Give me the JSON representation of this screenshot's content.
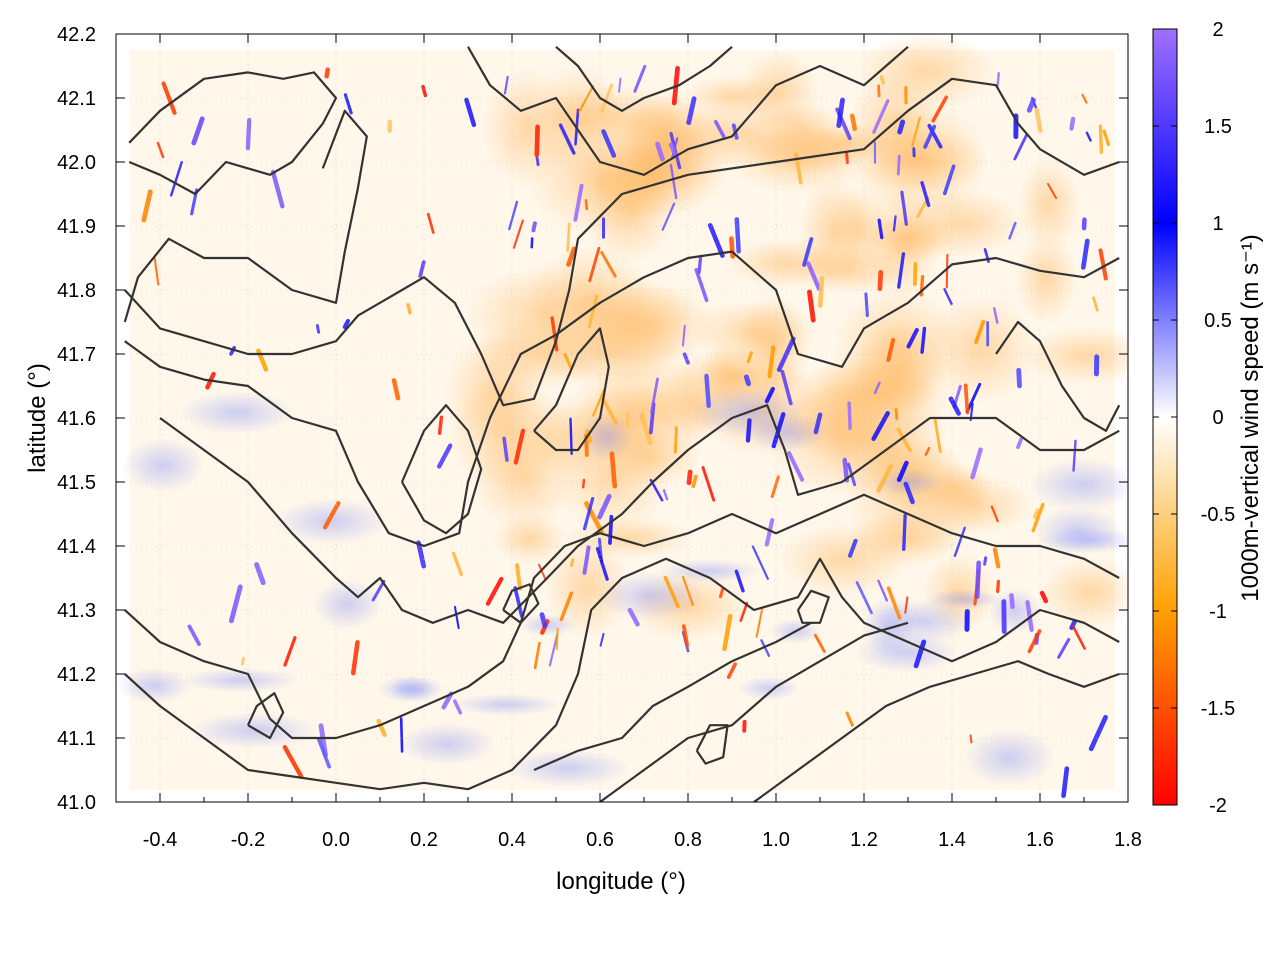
{
  "chart_data": {
    "type": "heatmap",
    "title": "",
    "xlabel": "longitude (°)",
    "ylabel": "latitude (°)",
    "colorbar_label": "1000m-vertical wind speed (m s⁻¹)",
    "xlim": [
      -0.5,
      1.8
    ],
    "ylim": [
      41.0,
      42.2
    ],
    "zlim": [
      -2,
      2
    ],
    "x_ticks": [
      -0.4,
      -0.2,
      0.0,
      0.2,
      0.4,
      0.6,
      0.8,
      1.0,
      1.2,
      1.4,
      1.6,
      1.8
    ],
    "x_tick_labels": [
      "-0.4",
      "-0.2",
      "0.0",
      "0.2",
      "0.4",
      "0.6",
      "0.8",
      "1.0",
      "1.2",
      "1.4",
      "1.6",
      "1.8"
    ],
    "y_ticks": [
      41.0,
      41.1,
      41.2,
      41.3,
      41.4,
      41.5,
      41.6,
      41.7,
      41.8,
      41.9,
      42.0,
      42.1,
      42.2
    ],
    "y_tick_labels": [
      "41.0",
      "41.1",
      "41.2",
      "41.3",
      "41.4",
      "41.5",
      "41.6",
      "41.7",
      "41.8",
      "41.9",
      "42.0",
      "42.1",
      "42.2"
    ],
    "colorbar_ticks": [
      2,
      1.5,
      1,
      0.5,
      0,
      -0.5,
      -1,
      -1.5,
      -2
    ],
    "colorbar_tick_labels": [
      "2",
      "1.5",
      "1",
      "0.5",
      "0",
      "-0.5",
      "-1",
      "-1.5",
      "-2"
    ],
    "colorbar_stops": [
      {
        "value": -2,
        "color": "#ff0000"
      },
      {
        "value": -1,
        "color": "#ffa000"
      },
      {
        "value": 0,
        "color": "#ffffff"
      },
      {
        "value": 1,
        "color": "#0000ff"
      },
      {
        "value": 2,
        "color": "#a070ff"
      }
    ],
    "contour_color": "#333333",
    "grid": true,
    "contours": [
      [
        [
          -0.47,
          42.03
        ],
        [
          -0.4,
          42.08
        ],
        [
          -0.3,
          42.13
        ],
        [
          -0.2,
          42.14
        ],
        [
          -0.12,
          42.13
        ],
        [
          -0.05,
          42.14
        ],
        [
          0.0,
          42.1
        ],
        [
          -0.03,
          42.06
        ],
        [
          -0.1,
          42.0
        ],
        [
          -0.15,
          41.98
        ],
        [
          -0.25,
          42.0
        ],
        [
          -0.32,
          41.95
        ],
        [
          -0.4,
          41.98
        ],
        [
          -0.47,
          42.0
        ]
      ],
      [
        [
          -0.03,
          41.99
        ],
        [
          0.02,
          42.08
        ],
        [
          0.07,
          42.04
        ],
        [
          0.05,
          41.96
        ],
        [
          0.02,
          41.86
        ],
        [
          0.0,
          41.78
        ],
        [
          -0.1,
          41.8
        ],
        [
          -0.2,
          41.85
        ],
        [
          -0.3,
          41.85
        ],
        [
          -0.38,
          41.88
        ],
        [
          -0.45,
          41.82
        ],
        [
          -0.48,
          41.75
        ]
      ],
      [
        [
          -0.48,
          41.8
        ],
        [
          -0.4,
          41.74
        ],
        [
          -0.3,
          41.72
        ],
        [
          -0.2,
          41.7
        ],
        [
          -0.1,
          41.7
        ],
        [
          0.0,
          41.72
        ],
        [
          0.05,
          41.76
        ],
        [
          0.1,
          41.78
        ],
        [
          0.15,
          41.8
        ],
        [
          0.2,
          41.82
        ],
        [
          0.27,
          41.78
        ],
        [
          0.33,
          41.7
        ],
        [
          0.38,
          41.62
        ],
        [
          0.45,
          41.63
        ],
        [
          0.5,
          41.72
        ],
        [
          0.53,
          41.8
        ],
        [
          0.55,
          41.88
        ],
        [
          0.65,
          41.95
        ],
        [
          0.8,
          41.98
        ],
        [
          1.0,
          42.0
        ],
        [
          1.2,
          42.02
        ],
        [
          1.3,
          42.08
        ],
        [
          1.4,
          42.13
        ],
        [
          1.5,
          42.12
        ],
        [
          1.55,
          42.06
        ],
        [
          1.6,
          42.02
        ],
        [
          1.7,
          41.98
        ],
        [
          1.78,
          42.0
        ]
      ],
      [
        [
          -0.48,
          41.72
        ],
        [
          -0.4,
          41.68
        ],
        [
          -0.3,
          41.66
        ],
        [
          -0.2,
          41.65
        ],
        [
          -0.1,
          41.6
        ],
        [
          0.0,
          41.58
        ],
        [
          0.05,
          41.5
        ],
        [
          0.12,
          41.42
        ],
        [
          0.2,
          41.4
        ],
        [
          0.28,
          41.42
        ],
        [
          0.3,
          41.5
        ],
        [
          0.35,
          41.6
        ],
        [
          0.42,
          41.7
        ],
        [
          0.5,
          41.73
        ],
        [
          0.6,
          41.78
        ],
        [
          0.7,
          41.82
        ],
        [
          0.8,
          41.85
        ],
        [
          0.9,
          41.86
        ],
        [
          1.0,
          41.8
        ],
        [
          1.05,
          41.7
        ],
        [
          1.15,
          41.68
        ],
        [
          1.2,
          41.74
        ],
        [
          1.3,
          41.78
        ],
        [
          1.4,
          41.84
        ],
        [
          1.5,
          41.85
        ],
        [
          1.6,
          41.83
        ],
        [
          1.7,
          41.82
        ],
        [
          1.78,
          41.85
        ]
      ],
      [
        [
          -0.4,
          41.6
        ],
        [
          -0.3,
          41.55
        ],
        [
          -0.2,
          41.5
        ],
        [
          -0.1,
          41.42
        ],
        [
          0.0,
          41.35
        ],
        [
          0.05,
          41.32
        ],
        [
          0.1,
          41.35
        ],
        [
          0.15,
          41.3
        ],
        [
          0.22,
          41.28
        ],
        [
          0.3,
          41.3
        ],
        [
          0.38,
          41.28
        ],
        [
          0.48,
          41.35
        ],
        [
          0.55,
          41.4
        ],
        [
          0.65,
          41.45
        ],
        [
          0.72,
          41.5
        ],
        [
          0.8,
          41.55
        ],
        [
          0.9,
          41.6
        ],
        [
          0.98,
          41.62
        ],
        [
          1.02,
          41.55
        ],
        [
          1.05,
          41.48
        ],
        [
          1.15,
          41.5
        ],
        [
          1.25,
          41.55
        ],
        [
          1.35,
          41.6
        ],
        [
          1.5,
          41.6
        ],
        [
          1.6,
          41.55
        ],
        [
          1.7,
          41.55
        ],
        [
          1.78,
          41.58
        ]
      ],
      [
        [
          0.15,
          41.5
        ],
        [
          0.2,
          41.58
        ],
        [
          0.25,
          41.62
        ],
        [
          0.3,
          41.58
        ],
        [
          0.33,
          41.52
        ],
        [
          0.3,
          41.45
        ],
        [
          0.25,
          41.42
        ],
        [
          0.2,
          41.44
        ],
        [
          0.15,
          41.5
        ]
      ],
      [
        [
          0.45,
          41.58
        ],
        [
          0.5,
          41.62
        ],
        [
          0.55,
          41.7
        ],
        [
          0.6,
          41.74
        ],
        [
          0.62,
          41.68
        ],
        [
          0.6,
          41.6
        ],
        [
          0.55,
          41.55
        ],
        [
          0.5,
          41.55
        ],
        [
          0.45,
          41.58
        ]
      ],
      [
        [
          -0.48,
          41.2
        ],
        [
          -0.4,
          41.15
        ],
        [
          -0.3,
          41.1
        ],
        [
          -0.2,
          41.05
        ],
        [
          -0.1,
          41.04
        ],
        [
          0.0,
          41.03
        ],
        [
          0.1,
          41.02
        ],
        [
          0.2,
          41.03
        ],
        [
          0.3,
          41.02
        ],
        [
          0.4,
          41.05
        ],
        [
          0.5,
          41.12
        ],
        [
          0.55,
          41.2
        ],
        [
          0.58,
          41.3
        ],
        [
          0.65,
          41.35
        ],
        [
          0.75,
          41.38
        ],
        [
          0.85,
          41.35
        ],
        [
          0.95,
          41.3
        ],
        [
          1.05,
          41.32
        ],
        [
          1.1,
          41.38
        ],
        [
          1.15,
          41.32
        ],
        [
          1.2,
          41.28
        ],
        [
          1.3,
          41.25
        ],
        [
          1.4,
          41.22
        ],
        [
          1.5,
          41.25
        ],
        [
          1.6,
          41.3
        ],
        [
          1.7,
          41.28
        ],
        [
          1.78,
          41.25
        ]
      ],
      [
        [
          -0.48,
          41.3
        ],
        [
          -0.4,
          41.25
        ],
        [
          -0.3,
          41.22
        ],
        [
          -0.2,
          41.2
        ],
        [
          -0.15,
          41.13
        ],
        [
          -0.1,
          41.1
        ],
        [
          0.0,
          41.1
        ],
        [
          0.1,
          41.12
        ],
        [
          0.2,
          41.15
        ],
        [
          0.3,
          41.18
        ],
        [
          0.38,
          41.22
        ],
        [
          0.42,
          41.28
        ],
        [
          0.45,
          41.35
        ],
        [
          0.52,
          41.4
        ],
        [
          0.6,
          41.42
        ],
        [
          0.7,
          41.4
        ],
        [
          0.8,
          41.42
        ],
        [
          0.9,
          41.45
        ],
        [
          1.0,
          41.42
        ],
        [
          1.1,
          41.45
        ],
        [
          1.2,
          41.48
        ],
        [
          1.3,
          41.45
        ],
        [
          1.4,
          41.42
        ],
        [
          1.5,
          41.4
        ],
        [
          1.6,
          41.4
        ],
        [
          1.7,
          41.38
        ],
        [
          1.78,
          41.35
        ]
      ],
      [
        [
          0.95,
          41.0
        ],
        [
          1.05,
          41.05
        ],
        [
          1.15,
          41.1
        ],
        [
          1.25,
          41.15
        ],
        [
          1.35,
          41.18
        ],
        [
          1.45,
          41.2
        ],
        [
          1.55,
          41.22
        ],
        [
          1.62,
          41.2
        ],
        [
          1.7,
          41.18
        ],
        [
          1.78,
          41.2
        ]
      ],
      [
        [
          0.6,
          41.0
        ],
        [
          0.7,
          41.05
        ],
        [
          0.8,
          41.1
        ],
        [
          0.9,
          41.12
        ],
        [
          1.0,
          41.18
        ],
        [
          1.1,
          41.22
        ],
        [
          1.2,
          41.26
        ],
        [
          1.3,
          41.28
        ]
      ],
      [
        [
          0.45,
          41.05
        ],
        [
          0.55,
          41.08
        ],
        [
          0.65,
          41.1
        ],
        [
          0.72,
          41.15
        ],
        [
          0.8,
          41.18
        ],
        [
          0.9,
          41.22
        ],
        [
          1.0,
          41.25
        ],
        [
          1.08,
          41.28
        ]
      ],
      [
        [
          0.3,
          42.18
        ],
        [
          0.35,
          42.12
        ],
        [
          0.42,
          42.08
        ],
        [
          0.5,
          42.1
        ],
        [
          0.55,
          42.05
        ],
        [
          0.6,
          42.0
        ],
        [
          0.7,
          41.98
        ],
        [
          0.8,
          42.02
        ],
        [
          0.9,
          42.04
        ],
        [
          0.95,
          42.08
        ],
        [
          1.0,
          42.12
        ],
        [
          1.1,
          42.15
        ],
        [
          1.2,
          42.12
        ],
        [
          1.25,
          42.15
        ],
        [
          1.3,
          42.18
        ]
      ],
      [
        [
          0.5,
          42.18
        ],
        [
          0.55,
          42.15
        ],
        [
          0.6,
          42.1
        ],
        [
          0.65,
          42.08
        ],
        [
          0.7,
          42.1
        ],
        [
          0.78,
          42.12
        ],
        [
          0.85,
          42.15
        ],
        [
          0.9,
          42.18
        ]
      ],
      [
        [
          1.5,
          41.7
        ],
        [
          1.55,
          41.75
        ],
        [
          1.6,
          41.72
        ],
        [
          1.65,
          41.65
        ],
        [
          1.7,
          41.6
        ],
        [
          1.75,
          41.58
        ],
        [
          1.78,
          41.62
        ]
      ],
      [
        [
          -0.2,
          41.12
        ],
        [
          -0.18,
          41.15
        ],
        [
          -0.14,
          41.17
        ],
        [
          -0.12,
          41.14
        ],
        [
          -0.15,
          41.1
        ],
        [
          -0.2,
          41.12
        ]
      ],
      [
        [
          0.38,
          41.3
        ],
        [
          0.4,
          41.33
        ],
        [
          0.44,
          41.34
        ],
        [
          0.46,
          41.31
        ],
        [
          0.42,
          41.28
        ],
        [
          0.38,
          41.3
        ]
      ],
      [
        [
          0.82,
          41.08
        ],
        [
          0.85,
          41.12
        ],
        [
          0.89,
          41.12
        ],
        [
          0.88,
          41.07
        ],
        [
          0.84,
          41.06
        ],
        [
          0.82,
          41.08
        ]
      ],
      [
        [
          1.05,
          41.3
        ],
        [
          1.08,
          41.33
        ],
        [
          1.12,
          41.32
        ],
        [
          1.1,
          41.28
        ],
        [
          1.06,
          41.28
        ],
        [
          1.05,
          41.3
        ]
      ]
    ]
  }
}
